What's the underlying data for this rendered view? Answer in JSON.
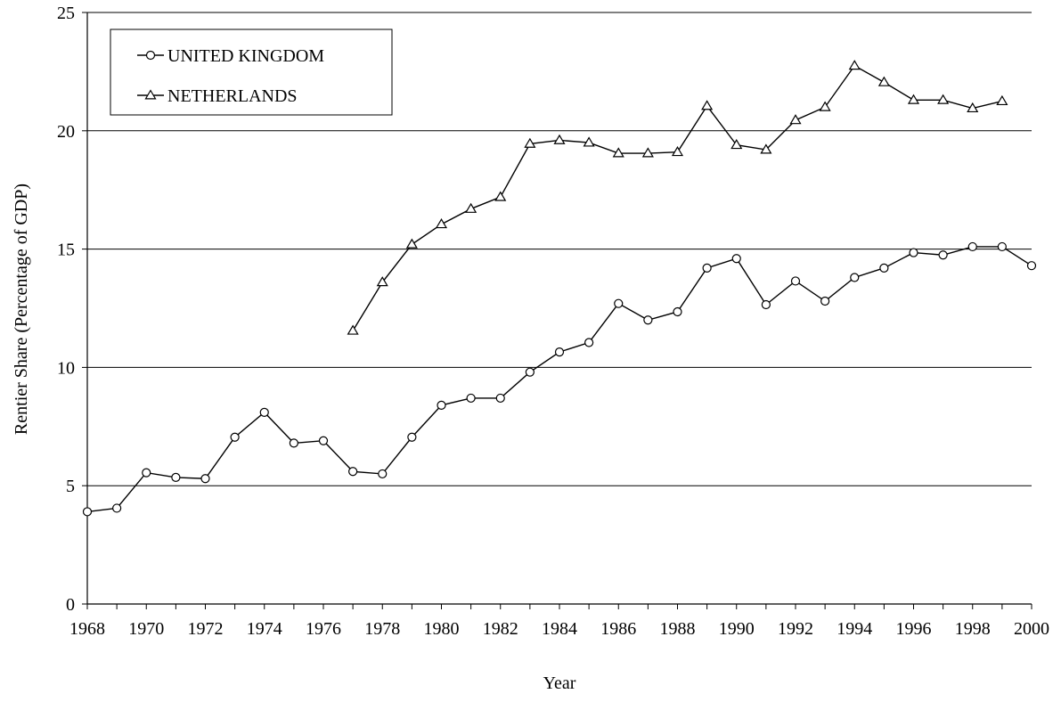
{
  "chart_data": {
    "type": "line",
    "title": "",
    "xlabel": "Year",
    "ylabel": "Rentier Share (Percentage of GDP)",
    "xlim": [
      1968,
      2000
    ],
    "ylim": [
      0,
      25
    ],
    "x_ticks": [
      "1968",
      "1970",
      "1972",
      "1974",
      "1976",
      "1978",
      "1980",
      "1982",
      "1984",
      "1986",
      "1988",
      "1990",
      "1992",
      "1994",
      "1996",
      "1998",
      "2000"
    ],
    "y_ticks": [
      "0",
      "5",
      "10",
      "15",
      "20",
      "25"
    ],
    "grid": "horizontal",
    "legend": "top-left",
    "series": [
      {
        "name": "UNITED KINGDOM",
        "marker": "circle",
        "color": "#000000",
        "x": [
          1968,
          1969,
          1970,
          1971,
          1972,
          1973,
          1974,
          1975,
          1976,
          1977,
          1978,
          1979,
          1980,
          1981,
          1982,
          1983,
          1984,
          1985,
          1986,
          1987,
          1988,
          1989,
          1990,
          1991,
          1992,
          1993,
          1994,
          1995,
          1996,
          1997,
          1998,
          1999,
          2000
        ],
        "values": [
          3.9,
          4.05,
          5.55,
          5.35,
          5.3,
          7.05,
          8.1,
          6.8,
          6.9,
          5.6,
          5.5,
          7.05,
          8.4,
          8.7,
          8.7,
          9.8,
          10.65,
          11.05,
          12.7,
          12.0,
          12.35,
          14.2,
          14.6,
          12.65,
          13.65,
          12.8,
          13.8,
          14.2,
          14.85,
          14.75,
          15.1,
          15.1,
          14.3
        ]
      },
      {
        "name": "NETHERLANDS",
        "marker": "triangle",
        "color": "#000000",
        "x": [
          1977,
          1978,
          1979,
          1980,
          1981,
          1982,
          1983,
          1984,
          1985,
          1986,
          1987,
          1988,
          1989,
          1990,
          1991,
          1992,
          1993,
          1994,
          1995,
          1996,
          1997,
          1998,
          1999
        ],
        "values": [
          11.55,
          13.6,
          15.2,
          16.05,
          16.7,
          17.2,
          19.45,
          19.6,
          19.5,
          19.05,
          19.05,
          19.1,
          21.05,
          19.4,
          19.2,
          20.45,
          21.0,
          22.75,
          22.05,
          21.3,
          21.3,
          20.95,
          21.25
        ]
      }
    ]
  }
}
